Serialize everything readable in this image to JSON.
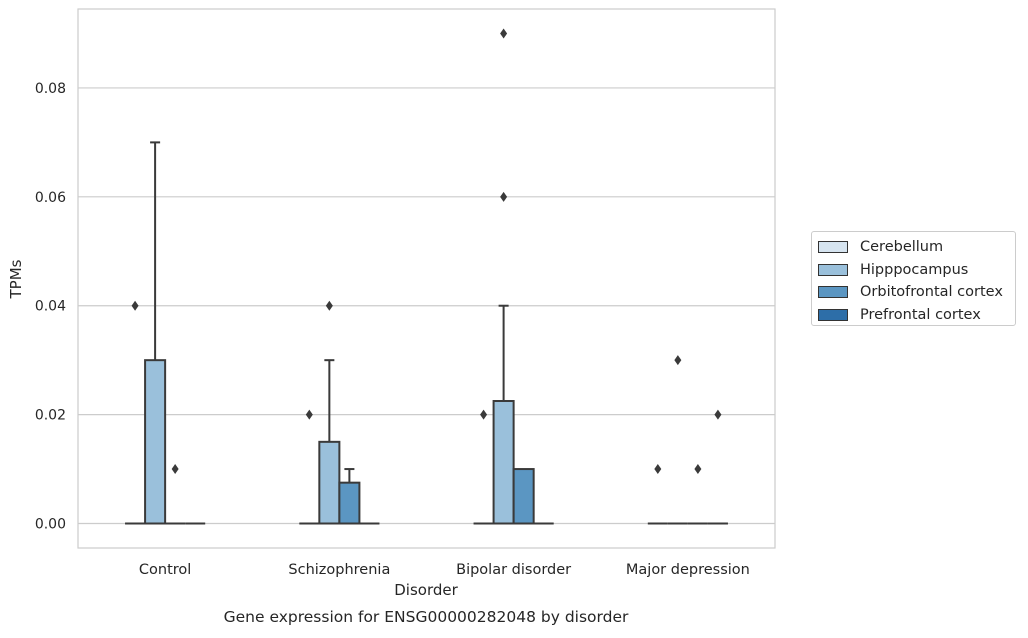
{
  "chart_data": {
    "type": "box",
    "title": "Gene expression for ENSG00000282048 by disorder",
    "xlabel": "Disorder",
    "ylabel": "TPMs",
    "ylim": [
      -0.0045,
      0.0945
    ],
    "yticks": [
      "0.00",
      "0.02",
      "0.04",
      "0.06",
      "0.08"
    ],
    "ytick_values": [
      0,
      0.02,
      0.04,
      0.06,
      0.08
    ],
    "grid": true,
    "legend_position": "right",
    "categories": [
      "Control",
      "Schizophrenia",
      "Bipolar disorder",
      "Major depression"
    ],
    "series": [
      {
        "name": "Cerebellum",
        "color": "#d6e4f0",
        "boxes": [
          {
            "q1": 0,
            "median": 0,
            "q3": 0,
            "whisker_low": 0,
            "whisker_high": 0,
            "outliers": [
              0.04
            ]
          },
          {
            "q1": 0,
            "median": 0,
            "q3": 0,
            "whisker_low": 0,
            "whisker_high": 0,
            "outliers": [
              0.02
            ]
          },
          {
            "q1": 0,
            "median": 0,
            "q3": 0,
            "whisker_low": 0,
            "whisker_high": 0,
            "outliers": [
              0.02
            ]
          },
          {
            "q1": 0,
            "median": 0,
            "q3": 0,
            "whisker_low": 0,
            "whisker_high": 0,
            "outliers": [
              0.01
            ]
          }
        ]
      },
      {
        "name": "Hipppocampus",
        "color": "#9ac0db",
        "boxes": [
          {
            "q1": 0,
            "median": 0,
            "q3": 0.03,
            "whisker_low": 0,
            "whisker_high": 0.07,
            "outliers": []
          },
          {
            "q1": 0,
            "median": 0,
            "q3": 0.015,
            "whisker_low": 0,
            "whisker_high": 0.03,
            "outliers": [
              0.04
            ]
          },
          {
            "q1": 0,
            "median": 0,
            "q3": 0.0225,
            "whisker_low": 0,
            "whisker_high": 0.04,
            "outliers": [
              0.06,
              0.09
            ]
          },
          {
            "q1": 0,
            "median": 0,
            "q3": 0,
            "whisker_low": 0,
            "whisker_high": 0,
            "outliers": [
              0.03
            ]
          }
        ]
      },
      {
        "name": "Orbitofrontal cortex",
        "color": "#5b96c2",
        "boxes": [
          {
            "q1": 0,
            "median": 0,
            "q3": 0,
            "whisker_low": 0,
            "whisker_high": 0,
            "outliers": [
              0.01
            ]
          },
          {
            "q1": 0,
            "median": 0,
            "q3": 0.0075,
            "whisker_low": 0,
            "whisker_high": 0.01,
            "outliers": []
          },
          {
            "q1": 0,
            "median": 0,
            "q3": 0.01,
            "whisker_low": 0,
            "whisker_high": 0.01,
            "outliers": []
          },
          {
            "q1": 0,
            "median": 0,
            "q3": 0,
            "whisker_low": 0,
            "whisker_high": 0,
            "outliers": [
              0.01
            ]
          }
        ]
      },
      {
        "name": "Prefrontal cortex",
        "color": "#2d6ea8",
        "boxes": [
          {
            "q1": 0,
            "median": 0,
            "q3": 0,
            "whisker_low": 0,
            "whisker_high": 0,
            "outliers": []
          },
          {
            "q1": 0,
            "median": 0,
            "q3": 0,
            "whisker_low": 0,
            "whisker_high": 0,
            "outliers": []
          },
          {
            "q1": 0,
            "median": 0,
            "q3": 0,
            "whisker_low": 0,
            "whisker_high": 0,
            "outliers": []
          },
          {
            "q1": 0,
            "median": 0,
            "q3": 0,
            "whisker_low": 0,
            "whisker_high": 0,
            "outliers": [
              0.02
            ]
          }
        ]
      }
    ]
  }
}
